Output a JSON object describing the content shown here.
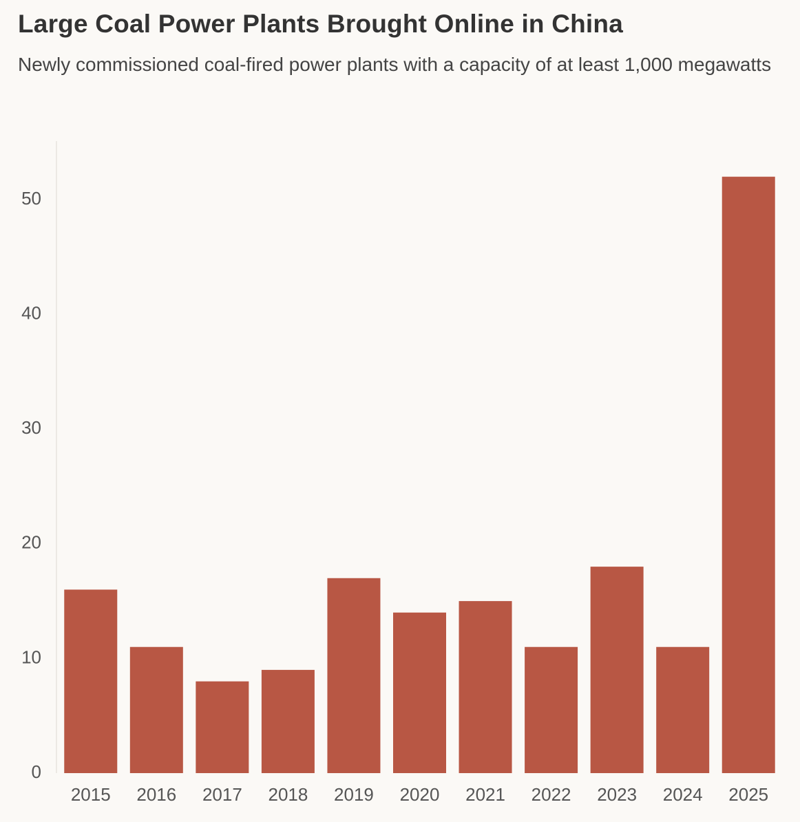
{
  "chart_data": {
    "type": "bar",
    "title": "Large Coal Power Plants Brought Online in China",
    "subtitle": "Newly commissioned coal-fired power plants with a capacity of at least 1,000 megawatts",
    "categories": [
      "2015",
      "2016",
      "2017",
      "2018",
      "2019",
      "2020",
      "2021",
      "2022",
      "2023",
      "2024",
      "2025"
    ],
    "values": [
      16,
      11,
      8,
      9,
      17,
      14,
      15,
      11,
      18,
      11,
      52
    ],
    "yticks": [
      0,
      10,
      20,
      30,
      40,
      50
    ],
    "ylim": [
      0,
      55
    ],
    "xlabel": "",
    "ylabel": "",
    "grid": false,
    "bar_color": "#b85744",
    "axis_color": "#e8e4de"
  }
}
